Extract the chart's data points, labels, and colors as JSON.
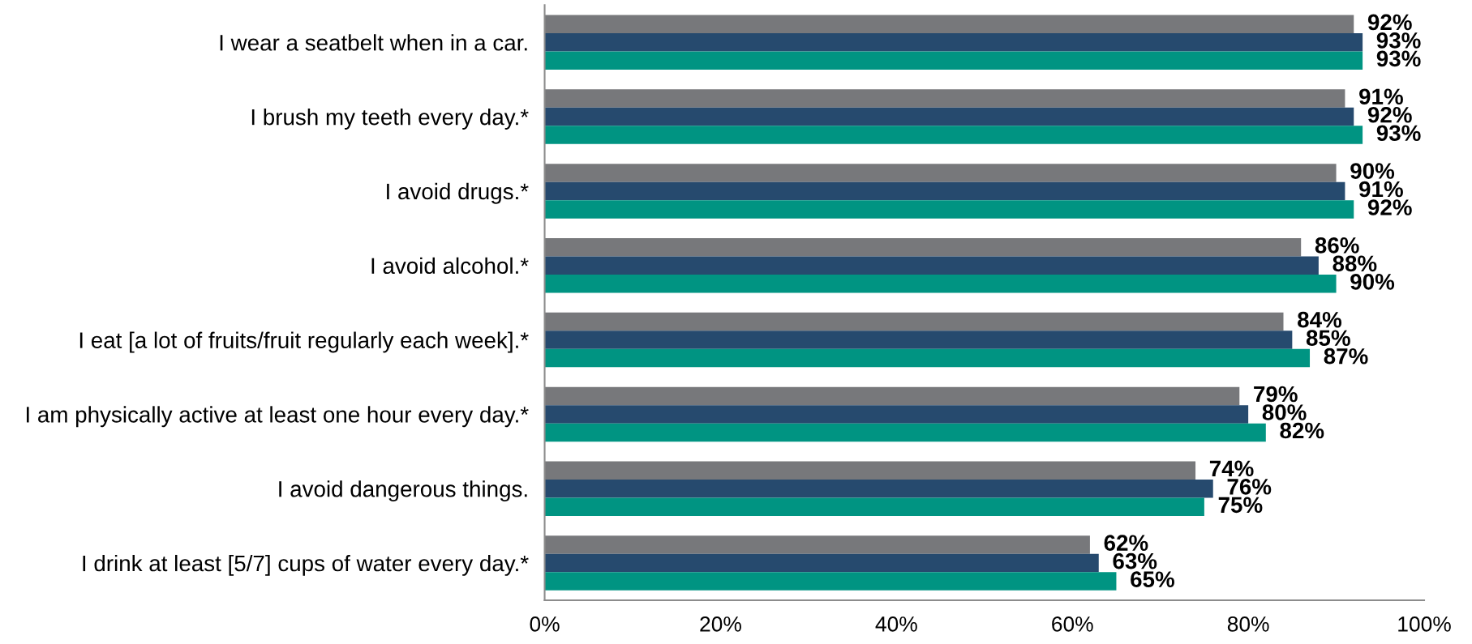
{
  "chart_data": {
    "type": "bar",
    "orientation": "horizontal",
    "categories": [
      "I wear a seatbelt when in a car.",
      "I brush my teeth every day.*",
      "I avoid drugs.*",
      "I avoid alcohol.*",
      "I eat [a lot of fruits/fruit regularly each week].*",
      "I am physically active at least one hour every day.*",
      "I avoid dangerous things.",
      "I drink at least [5/7] cups of water every day.*"
    ],
    "series": [
      {
        "color": "#77787b",
        "values": [
          92,
          91,
          90,
          86,
          84,
          79,
          74,
          62
        ],
        "value_labels": [
          "92%",
          "91%",
          "90%",
          "86%",
          "84%",
          "79%",
          "74%",
          "62%"
        ]
      },
      {
        "color": "#264a6e",
        "values": [
          93,
          92,
          91,
          88,
          85,
          80,
          76,
          63
        ],
        "value_labels": [
          "93%",
          "92%",
          "91%",
          "88%",
          "85%",
          "80%",
          "76%",
          "63%"
        ]
      },
      {
        "color": "#009482",
        "values": [
          93,
          93,
          92,
          90,
          87,
          82,
          75,
          65
        ],
        "value_labels": [
          "93%",
          "93%",
          "92%",
          "90%",
          "87%",
          "82%",
          "75%",
          "65%"
        ]
      }
    ],
    "xlim": [
      0,
      100
    ],
    "xticks": [
      {
        "value": 0,
        "label": "0%"
      },
      {
        "value": 20,
        "label": "20%"
      },
      {
        "value": 40,
        "label": "40%"
      },
      {
        "value": 60,
        "label": "60%"
      },
      {
        "value": 80,
        "label": "80%"
      },
      {
        "value": 100,
        "label": "100%"
      }
    ],
    "grid": false
  }
}
